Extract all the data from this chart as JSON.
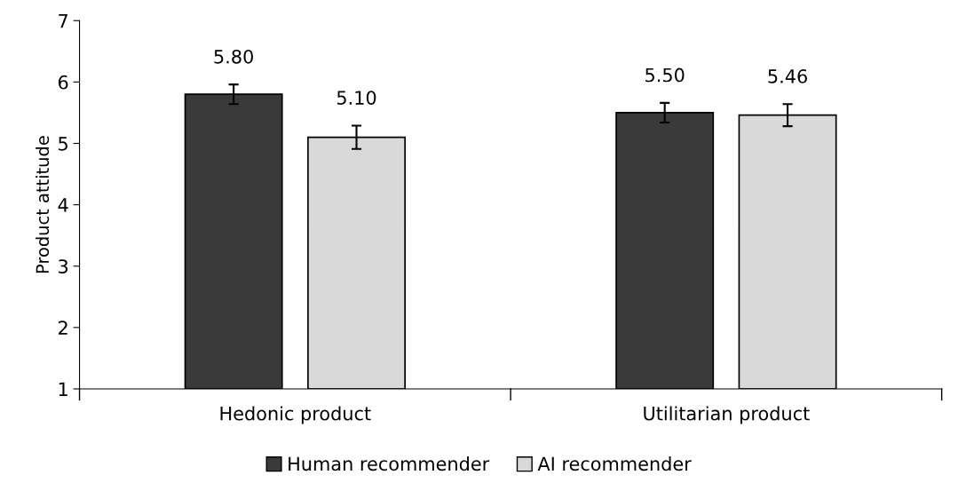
{
  "chart_data": {
    "type": "bar",
    "ylabel": "Product attitude",
    "categories": [
      "Hedonic product",
      "Utilitarian product"
    ],
    "series": [
      {
        "name": "Human recommender",
        "color": "#3a3a3a",
        "values": [
          5.8,
          5.5
        ],
        "errors": [
          0.16,
          0.16
        ],
        "value_labels": [
          "5.80",
          "5.50"
        ]
      },
      {
        "name": "AI recommender",
        "color": "#d9d9d9",
        "values": [
          5.1,
          5.46
        ],
        "errors": [
          0.19,
          0.18
        ],
        "value_labels": [
          "5.10",
          "5.46"
        ]
      }
    ],
    "ylim": [
      1,
      7
    ],
    "yticks": [
      1,
      2,
      3,
      4,
      5,
      6,
      7
    ],
    "grid": false,
    "legend": "bottom"
  }
}
